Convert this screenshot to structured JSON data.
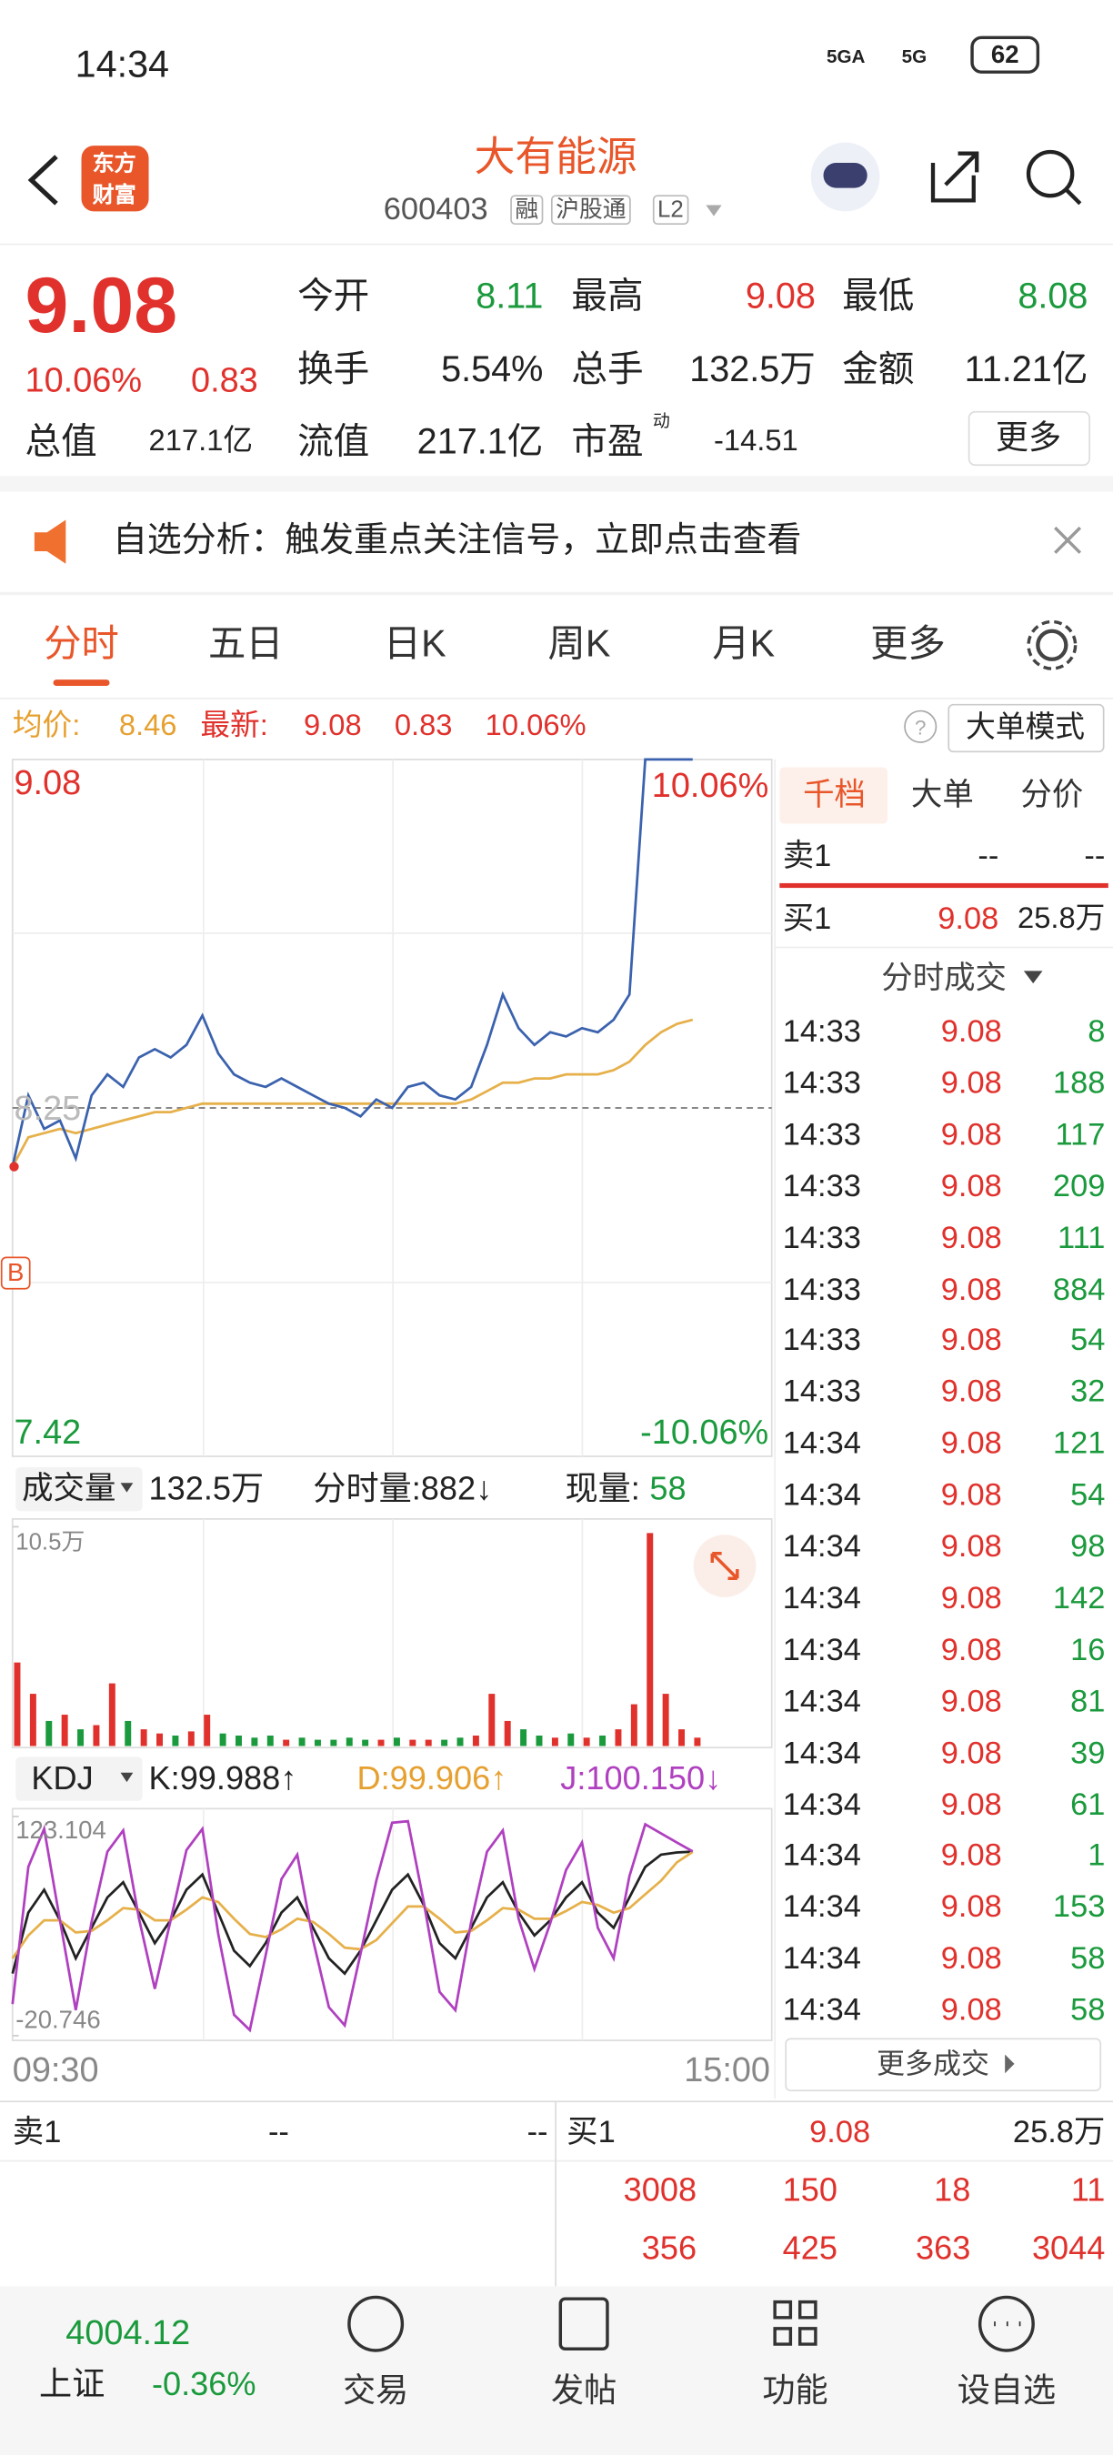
{
  "status_bar": {
    "time": "14:34",
    "signal_1": "5GA",
    "signal_2": "5G",
    "battery": "62"
  },
  "header": {
    "logo": [
      "东方",
      "财富"
    ],
    "title": "大有能源",
    "code": "600403",
    "tags": [
      "融",
      "沪股通",
      "L2"
    ]
  },
  "quote": {
    "price": "9.08",
    "change_pct": "10.06%",
    "change": "0.83",
    "fields": [
      {
        "label": "今开",
        "value": "8.11"
      },
      {
        "label": "最高",
        "value": "9.08"
      },
      {
        "label": "最低",
        "value": "8.08"
      },
      {
        "label": "换手",
        "value": "5.54%"
      },
      {
        "label": "总手",
        "value": "132.5万"
      },
      {
        "label": "金额",
        "value": "11.21亿"
      },
      {
        "label": "总值",
        "value": "217.1亿"
      },
      {
        "label": "流值",
        "value": "217.1亿"
      },
      {
        "label": "市盈",
        "label_sup": "动",
        "value": "-14.51"
      }
    ],
    "more": "更多"
  },
  "notice": {
    "text": "自选分析：触发重点关注信号，立即点击查看"
  },
  "tabs": [
    "分时",
    "五日",
    "日K",
    "周K",
    "月K",
    "更多"
  ],
  "info_line": {
    "avg_label": "均价:",
    "avg": "8.46",
    "latest_label": "最新:",
    "latest": "9.08",
    "change": "0.83",
    "change_pct": "10.06%",
    "mode_button": "大单模式"
  },
  "intraday": {
    "type": "line",
    "ylim": [
      7.42,
      9.08
    ],
    "yticks": [
      9.08,
      8.25,
      7.42
    ],
    "pct_labels": [
      "10.06%",
      "-10.06%"
    ],
    "marker": "B",
    "xticks": [
      "09:30",
      "15:00"
    ],
    "price_color": "#3b62ae",
    "avg_color": "#e6b04a",
    "price": [
      8.11,
      8.28,
      8.2,
      8.22,
      8.13,
      8.28,
      8.33,
      8.3,
      8.37,
      8.39,
      8.37,
      8.4,
      8.47,
      8.38,
      8.33,
      8.31,
      8.3,
      8.32,
      8.3,
      8.28,
      8.26,
      8.25,
      8.23,
      8.27,
      8.25,
      8.3,
      8.31,
      8.28,
      8.27,
      8.3,
      8.4,
      8.52,
      8.44,
      8.4,
      8.43,
      8.42,
      8.44,
      8.43,
      8.46,
      8.52,
      9.08,
      9.08,
      9.08,
      9.08
    ],
    "avg": [
      8.11,
      8.18,
      8.19,
      8.2,
      8.19,
      8.2,
      8.21,
      8.22,
      8.23,
      8.24,
      8.24,
      8.25,
      8.26,
      8.26,
      8.26,
      8.26,
      8.26,
      8.26,
      8.26,
      8.26,
      8.26,
      8.26,
      8.26,
      8.26,
      8.26,
      8.26,
      8.26,
      8.26,
      8.26,
      8.27,
      8.29,
      8.31,
      8.31,
      8.32,
      8.32,
      8.33,
      8.33,
      8.33,
      8.34,
      8.36,
      8.4,
      8.43,
      8.45,
      8.46
    ]
  },
  "volume": {
    "type": "bar",
    "selector": "成交量",
    "total": "132.5万",
    "last_label": "分时量:882↓",
    "current_label": "现量:",
    "current": "58",
    "ylim": [
      0,
      10.5
    ],
    "yticks": [
      {
        "value": 10.5,
        "label": "10.5万"
      }
    ],
    "up_color": "#e0312c",
    "down_color": "#1a9a3c",
    "values": [
      4.0,
      2.5,
      1.2,
      1.5,
      0.8,
      1.0,
      3.0,
      1.2,
      0.8,
      0.6,
      0.5,
      0.7,
      1.5,
      0.6,
      0.5,
      0.4,
      0.5,
      0.3,
      0.4,
      0.3,
      0.3,
      0.4,
      0.3,
      0.3,
      0.4,
      0.3,
      0.3,
      0.3,
      0.4,
      0.5,
      2.5,
      1.2,
      0.8,
      0.5,
      0.4,
      0.6,
      0.4,
      0.5,
      0.8,
      2.0,
      10.2,
      2.5,
      0.8,
      0.4
    ]
  },
  "kdj": {
    "type": "line",
    "name": "KDJ",
    "k_label": "K:99.988↑",
    "d_label": "D:99.906↑",
    "j_label": "J:100.150↓",
    "ylim": [
      -20.746,
      123.104
    ],
    "yticks": [
      123.104,
      -20.746
    ],
    "series": [
      {
        "color": "#222222",
        "values": [
          20,
          60,
          75,
          55,
          30,
          50,
          70,
          80,
          60,
          40,
          55,
          75,
          85,
          60,
          35,
          25,
          40,
          60,
          70,
          50,
          30,
          20,
          35,
          55,
          75,
          85,
          65,
          40,
          30,
          50,
          70,
          80,
          60,
          45,
          55,
          70,
          80,
          60,
          50,
          70,
          90,
          98,
          99.5,
          99.988
        ]
      },
      {
        "color": "#e6b04a",
        "values": [
          30,
          45,
          55,
          55,
          47,
          48,
          55,
          63,
          62,
          55,
          55,
          62,
          70,
          67,
          56,
          46,
          44,
          49,
          56,
          54,
          46,
          37,
          36,
          42,
          53,
          64,
          64,
          56,
          47,
          48,
          55,
          63,
          62,
          56,
          56,
          61,
          67,
          65,
          60,
          63,
          72,
          81,
          93,
          99.906
        ]
      },
      {
        "color": "#b040c0",
        "values": [
          0,
          90,
          115,
          55,
          -4,
          54,
          100,
          114,
          56,
          10,
          55,
          101,
          115,
          46,
          -7,
          -17,
          32,
          82,
          98,
          42,
          -2,
          -14,
          33,
          81,
          119,
          120,
          67,
          8,
          -4,
          54,
          100,
          114,
          56,
          23,
          53,
          88,
          106,
          50,
          30,
          84,
          118,
          112,
          106,
          100.15
        ]
      }
    ]
  },
  "side_panel": {
    "tabs": [
      "千档",
      "大单",
      "分价"
    ],
    "ask": [
      "卖1",
      "--",
      "--"
    ],
    "bid": [
      "买1",
      "9.08",
      "25.8万"
    ],
    "trades_title": "分时成交",
    "trades": [
      [
        "14:33",
        "9.08",
        "8"
      ],
      [
        "14:33",
        "9.08",
        "188"
      ],
      [
        "14:33",
        "9.08",
        "117"
      ],
      [
        "14:33",
        "9.08",
        "209"
      ],
      [
        "14:33",
        "9.08",
        "111"
      ],
      [
        "14:33",
        "9.08",
        "884"
      ],
      [
        "14:33",
        "9.08",
        "54"
      ],
      [
        "14:33",
        "9.08",
        "32"
      ],
      [
        "14:34",
        "9.08",
        "121"
      ],
      [
        "14:34",
        "9.08",
        "54"
      ],
      [
        "14:34",
        "9.08",
        "98"
      ],
      [
        "14:34",
        "9.08",
        "142"
      ],
      [
        "14:34",
        "9.08",
        "16"
      ],
      [
        "14:34",
        "9.08",
        "81"
      ],
      [
        "14:34",
        "9.08",
        "39"
      ],
      [
        "14:34",
        "9.08",
        "61"
      ],
      [
        "14:34",
        "9.08",
        "1"
      ],
      [
        "14:34",
        "9.08",
        "153"
      ],
      [
        "14:34",
        "9.08",
        "58"
      ],
      [
        "14:34",
        "9.08",
        "58"
      ]
    ],
    "more": "更多成交"
  },
  "order_book": {
    "ask": [
      "卖1",
      "--",
      "--"
    ],
    "bid": [
      "买1",
      "9.08",
      "25.8万"
    ],
    "rows": [
      [
        "3008",
        "150",
        "18",
        "11"
      ],
      [
        "356",
        "425",
        "363",
        "3044"
      ]
    ]
  },
  "bottom_bar": {
    "index_value": "4004.12",
    "index_name": "上证",
    "index_change": "-0.36%",
    "items": [
      "交易",
      "发帖",
      "功能",
      "设自选"
    ]
  }
}
